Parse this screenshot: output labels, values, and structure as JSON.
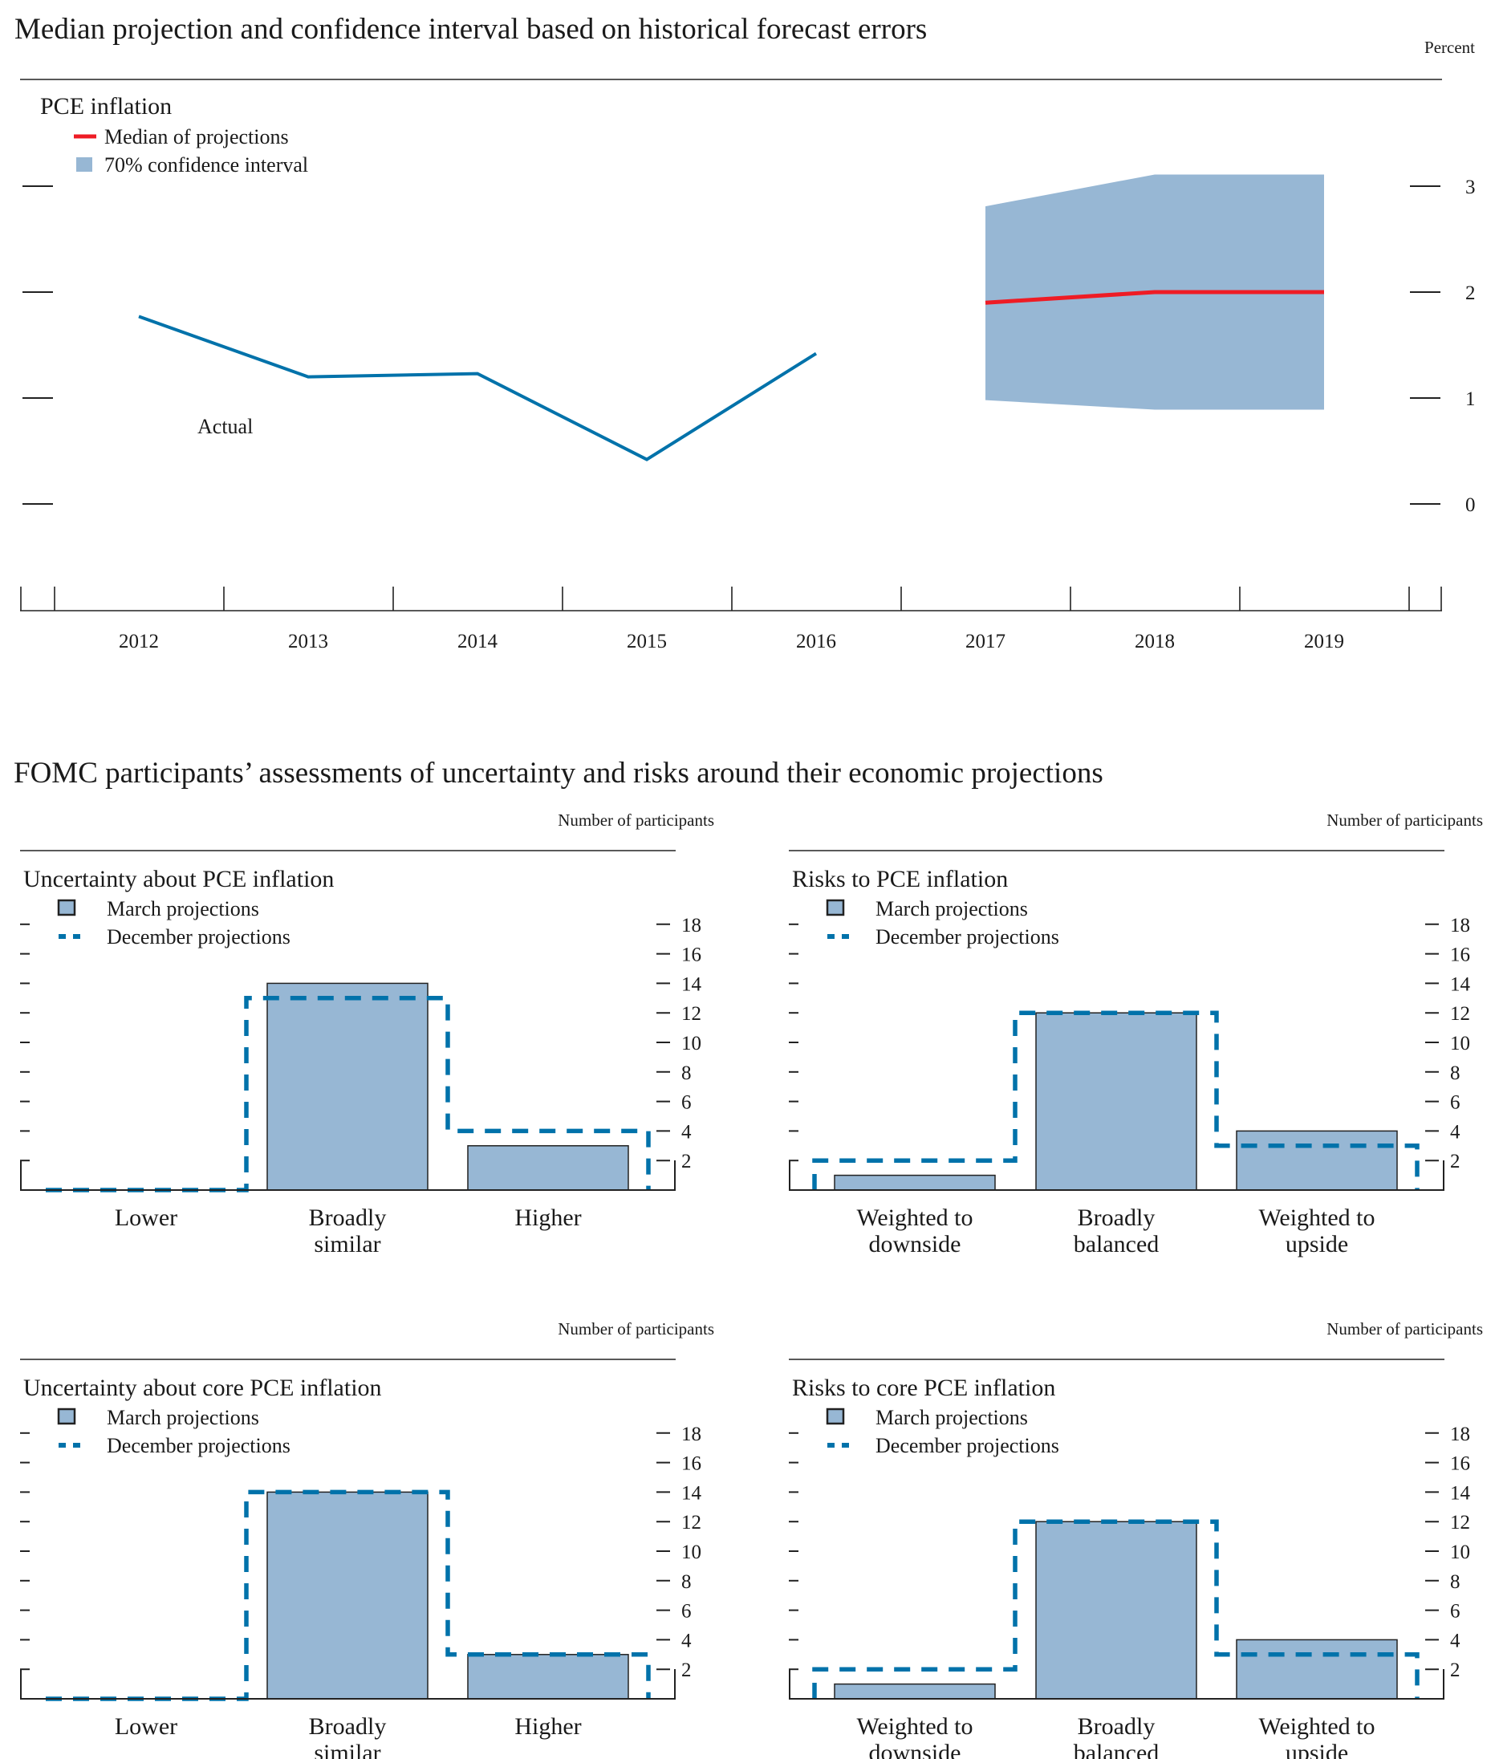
{
  "header": {
    "title": "Median projection and confidence interval based on historical forecast errors",
    "second_title": "FOMC participants’ assessments of uncertainty and risks around their economic projections"
  },
  "colors": {
    "actual": "#0072aa",
    "median": "#ee1c25",
    "interval": "#97b7d4",
    "december": "#0072aa",
    "bar_edge": "#222222"
  },
  "chart_data": [
    {
      "type": "line",
      "title": "PCE inflation",
      "unit_label": "Percent",
      "x": [
        "2012",
        "2013",
        "2014",
        "2015",
        "2016",
        "2017",
        "2018",
        "2019"
      ],
      "ylim": [
        -0.9,
        3.4
      ],
      "yticks": [
        0,
        1,
        2,
        3
      ],
      "grid": false,
      "legend": [
        "Median of projections",
        "70% confidence interval"
      ],
      "annotation": "Actual",
      "series": [
        {
          "name": "Actual",
          "x": [
            "2012",
            "2013",
            "2014",
            "2015",
            "2016"
          ],
          "values": [
            1.77,
            1.2,
            1.23,
            0.42,
            1.42
          ]
        },
        {
          "name": "Median of projections",
          "x": [
            "2017",
            "2018",
            "2019"
          ],
          "values": [
            1.9,
            2.0,
            2.0
          ]
        }
      ],
      "interval": {
        "name": "70% confidence interval",
        "x": [
          "2017",
          "2018",
          "2019"
        ],
        "lower": [
          0.98,
          0.89,
          0.89
        ],
        "upper": [
          2.81,
          3.11,
          3.11
        ]
      }
    },
    {
      "type": "bar",
      "title": "Uncertainty about PCE inflation",
      "unit_label": "Number of participants",
      "categories": [
        [
          "Lower"
        ],
        [
          "Broadly",
          "similar"
        ],
        [
          "Higher"
        ]
      ],
      "series": [
        {
          "name": "March projections",
          "values": [
            0,
            14,
            3
          ]
        },
        {
          "name": "December projections",
          "values": [
            0,
            13,
            4
          ]
        }
      ],
      "ylim": [
        0,
        18
      ],
      "yticks": [
        2,
        4,
        6,
        8,
        10,
        12,
        14,
        16,
        18
      ]
    },
    {
      "type": "bar",
      "title": "Risks to PCE inflation",
      "unit_label": "Number of participants",
      "categories": [
        [
          "Weighted to",
          "downside"
        ],
        [
          "Broadly",
          "balanced"
        ],
        [
          "Weighted to",
          "upside"
        ]
      ],
      "series": [
        {
          "name": "March projections",
          "values": [
            1,
            12,
            4
          ]
        },
        {
          "name": "December projections",
          "values": [
            2,
            12,
            3
          ]
        }
      ],
      "ylim": [
        0,
        18
      ],
      "yticks": [
        2,
        4,
        6,
        8,
        10,
        12,
        14,
        16,
        18
      ]
    },
    {
      "type": "bar",
      "title": "Uncertainty about core PCE inflation",
      "unit_label": "Number of participants",
      "categories": [
        [
          "Lower"
        ],
        [
          "Broadly",
          "similar"
        ],
        [
          "Higher"
        ]
      ],
      "series": [
        {
          "name": "March projections",
          "values": [
            0,
            14,
            3
          ]
        },
        {
          "name": "December projections",
          "values": [
            0,
            14,
            3
          ]
        }
      ],
      "ylim": [
        0,
        18
      ],
      "yticks": [
        2,
        4,
        6,
        8,
        10,
        12,
        14,
        16,
        18
      ]
    },
    {
      "type": "bar",
      "title": "Risks to core PCE inflation",
      "unit_label": "Number of participants",
      "categories": [
        [
          "Weighted to",
          "downside"
        ],
        [
          "Broadly",
          "balanced"
        ],
        [
          "Weighted to",
          "upside"
        ]
      ],
      "series": [
        {
          "name": "March projections",
          "values": [
            1,
            12,
            4
          ]
        },
        {
          "name": "December projections",
          "values": [
            2,
            12,
            3
          ]
        }
      ],
      "ylim": [
        0,
        18
      ],
      "yticks": [
        2,
        4,
        6,
        8,
        10,
        12,
        14,
        16,
        18
      ]
    }
  ]
}
